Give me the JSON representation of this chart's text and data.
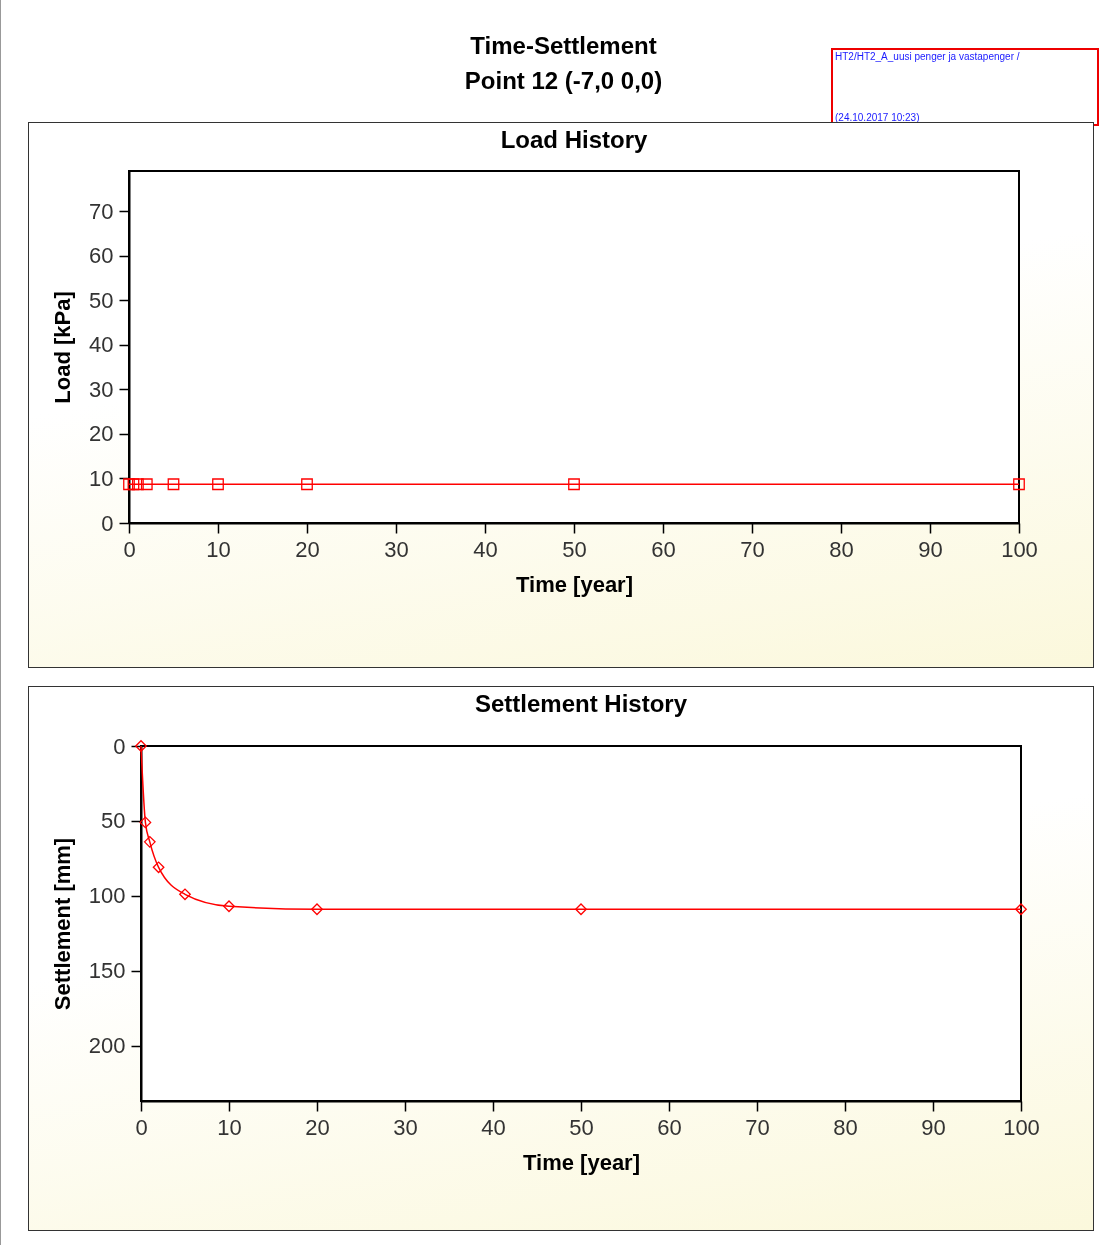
{
  "chart_data": [
    {
      "type": "line",
      "title": "Load History",
      "xlabel": "Time [year]",
      "ylabel": "Load [kPa]",
      "annotations": [
        "Time-Settlement",
        "Point 12 (-7,0 0,0)",
        "HT2/HT2_A_uusi penger ja vastapenger /",
        "(24.10.2017 10:23)"
      ],
      "x": [
        0,
        0.5,
        1,
        2,
        5,
        10,
        20,
        50,
        100
      ],
      "series": [
        {
          "color": "#ff0000",
          "values": [
            8.7,
            8.7,
            8.7,
            8.7,
            8.7,
            8.7,
            8.7,
            8.7,
            8.7
          ]
        }
      ],
      "xlim": [
        0,
        100
      ],
      "xticks": [
        0,
        10,
        20,
        30,
        40,
        50,
        60,
        70,
        80,
        90,
        100
      ],
      "ylim": [
        0,
        79
      ],
      "yticks": [
        0,
        10,
        20,
        30,
        40,
        50,
        60,
        70
      ],
      "marker": "square",
      "grid": false
    },
    {
      "type": "line",
      "title": "Settlement History",
      "xlabel": "Time [year]",
      "ylabel": "Settlement [mm]",
      "x": [
        0,
        0.5,
        1,
        2,
        5,
        10,
        20,
        50,
        100
      ],
      "series": [
        {
          "color": "#ff0000",
          "values": [
            0,
            51,
            64,
            81,
            99,
            107,
            109,
            109,
            109
          ]
        }
      ],
      "xlim": [
        0,
        100
      ],
      "xticks": [
        0,
        10,
        20,
        30,
        40,
        50,
        60,
        70,
        80,
        90,
        100
      ],
      "ylim": [
        237,
        0
      ],
      "yticks": [
        0,
        50,
        100,
        150,
        200
      ],
      "marker": "diamond",
      "grid": false
    }
  ]
}
